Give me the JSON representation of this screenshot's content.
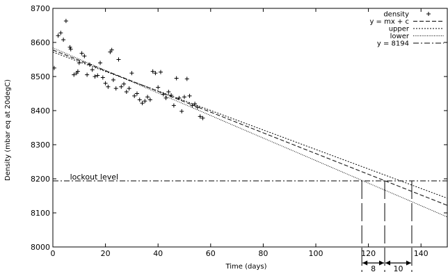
{
  "chart_data": {
    "type": "scatter",
    "xlabel": "Time (days)",
    "ylabel": "Density (mbar eq at 20degC)",
    "xlim": [
      0,
      150
    ],
    "ylim": [
      8000,
      8700
    ],
    "xticks": [
      0,
      20,
      40,
      60,
      80,
      100,
      120,
      140
    ],
    "yticks": [
      8000,
      8100,
      8200,
      8300,
      8400,
      8500,
      8600,
      8700
    ],
    "grid": false,
    "legend_position": "top-right",
    "series": [
      {
        "name": "density",
        "kind": "points",
        "marker": "+",
        "x": [
          0.5,
          2,
          3,
          4,
          5,
          6.5,
          6.8,
          8,
          9,
          9.5,
          10,
          11,
          12,
          13,
          14,
          15,
          16,
          17,
          18,
          19,
          20,
          21,
          21.8,
          22.4,
          23,
          24,
          25,
          26,
          27,
          28,
          29,
          30,
          31,
          32,
          33,
          34,
          35,
          36,
          37,
          38,
          39,
          40,
          41,
          42,
          43,
          44,
          45,
          46,
          47,
          48,
          49,
          50,
          51,
          52,
          53,
          54,
          55,
          56,
          57
        ],
        "y": [
          8525,
          8620,
          8628,
          8608,
          8663,
          8586,
          8580,
          8505,
          8510,
          8515,
          8540,
          8568,
          8560,
          8505,
          8535,
          8520,
          8500,
          8503,
          8540,
          8497,
          8480,
          8470,
          8572,
          8578,
          8490,
          8465,
          8550,
          8470,
          8478,
          8455,
          8465,
          8510,
          8443,
          8450,
          8432,
          8422,
          8428,
          8440,
          8432,
          8515,
          8510,
          8468,
          8513,
          8448,
          8437,
          8455,
          8445,
          8415,
          8495,
          8437,
          8398,
          8440,
          8493,
          8443,
          8415,
          8420,
          8410,
          8383,
          8378
        ]
      },
      {
        "name": "y = mx + c",
        "kind": "line",
        "dash": "6,3",
        "x": [
          0,
          150
        ],
        "y": [
          8578,
          8122
        ]
      },
      {
        "name": "upper",
        "kind": "line",
        "dash": "2,2",
        "x": [
          0,
          150
        ],
        "y": [
          8572,
          8143
        ]
      },
      {
        "name": "lower",
        "kind": "line",
        "dash": "1,1.5",
        "x": [
          0,
          150
        ],
        "y": [
          8584,
          8088
        ]
      },
      {
        "name": "y = 8194",
        "kind": "line",
        "dash": "8,3,2,3",
        "x": [
          0,
          150
        ],
        "y": [
          8194,
          8194
        ]
      }
    ],
    "annotations": {
      "lockout_label": "lockout level",
      "lockout_y": 8194,
      "crossing_x": [
        117.5,
        126.2,
        136.5
      ],
      "intervals": [
        {
          "from": 117.5,
          "to": 126.2,
          "label": "8"
        },
        {
          "from": 126.2,
          "to": 136.5,
          "label": "10"
        }
      ]
    }
  }
}
